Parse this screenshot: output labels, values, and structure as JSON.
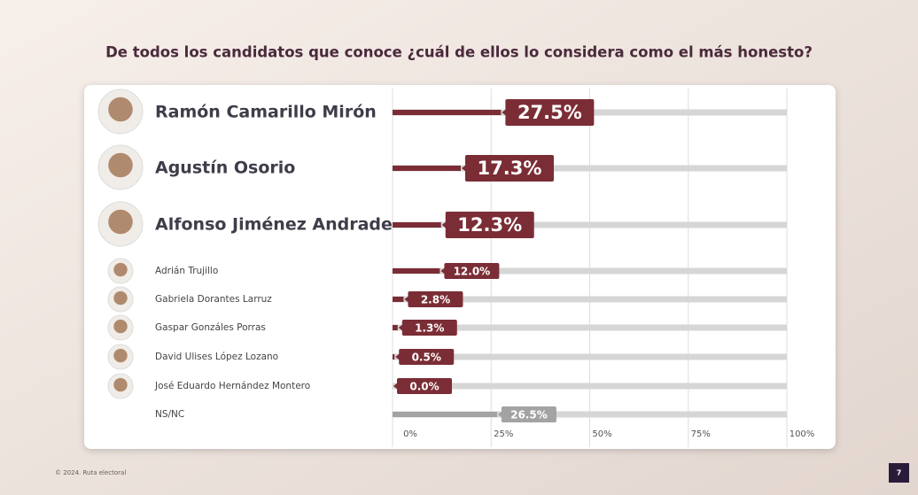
{
  "chart_data": {
    "type": "bar",
    "title": "De todos los candidatos que conoce ¿cuál de ellos lo considera como el más honesto?",
    "categories": [
      "Ramón Camarillo Mirón",
      "Agustín Osorio",
      "Alfonso Jiménez Andrade",
      "Adrián Trujillo",
      "Gabriela Dorantes Larruz",
      "Gaspar Gonzáles Porras",
      "David Ulises López Lozano",
      "José Eduardo Hernández Montero",
      "NS/NC"
    ],
    "values": [
      27.5,
      17.3,
      12.3,
      12.0,
      2.8,
      1.3,
      0.5,
      0.0,
      26.5
    ],
    "value_labels": [
      "27.5%",
      "17.3%",
      "12.3%",
      "12.0%",
      "2.8%",
      "1.3%",
      "0.5%",
      "0.0%",
      "26.5%"
    ],
    "colors": [
      "#7b2d35",
      "#7b2d35",
      "#7b2d35",
      "#7b2d35",
      "#7b2d35",
      "#7b2d35",
      "#7b2d35",
      "#7b2d35",
      "#a3a3a3"
    ],
    "xlim": [
      0,
      100
    ],
    "xticks": [
      {
        "value": 0,
        "label": "0%"
      },
      {
        "value": 25,
        "label": "25%"
      },
      {
        "value": 50,
        "label": "50%"
      },
      {
        "value": 75,
        "label": "75%"
      },
      {
        "value": 100,
        "label": "100%"
      }
    ],
    "grid": true
  },
  "footer": {
    "copyright": "© 2024. Ruta electoral",
    "page": "7"
  }
}
